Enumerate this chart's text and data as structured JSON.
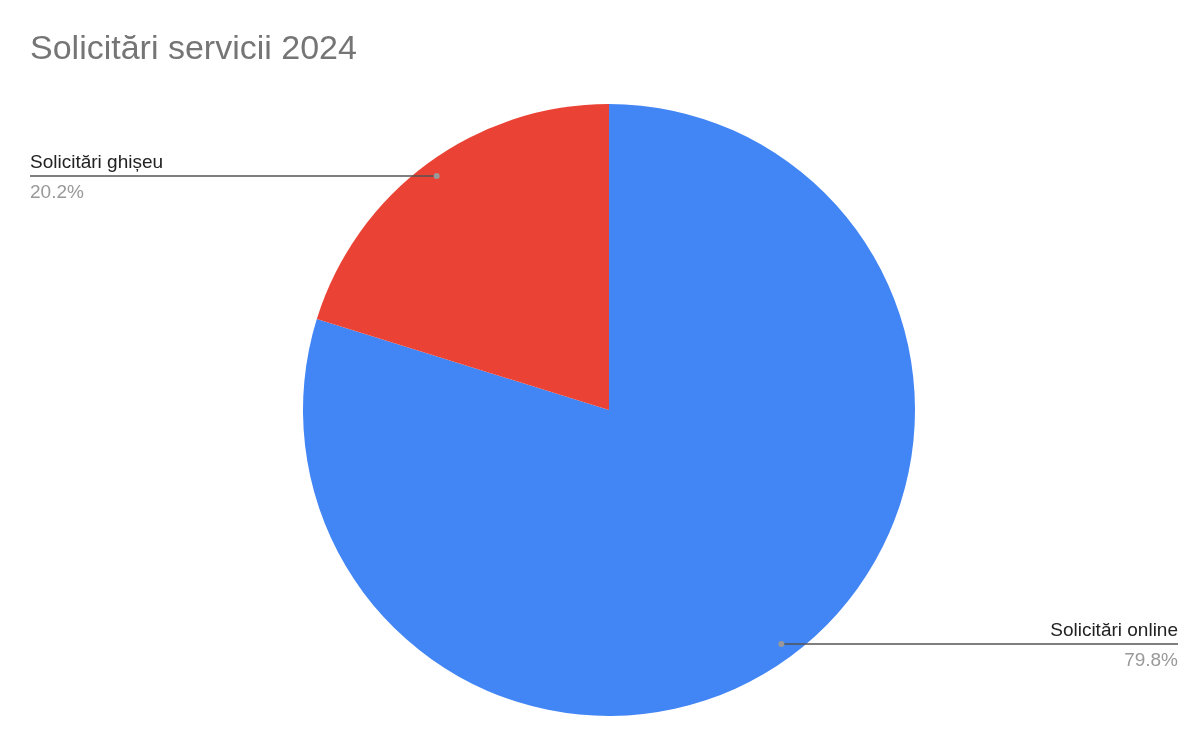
{
  "chart_data": {
    "type": "pie",
    "title": "Solicitări servicii 2024",
    "categories": [
      "Solicitări online",
      "Solicitări ghișeu"
    ],
    "values": [
      79.8,
      20.2
    ],
    "colors": [
      "#4285f4",
      "#ea4335"
    ],
    "value_labels": [
      "79.8%",
      "20.2%"
    ]
  }
}
